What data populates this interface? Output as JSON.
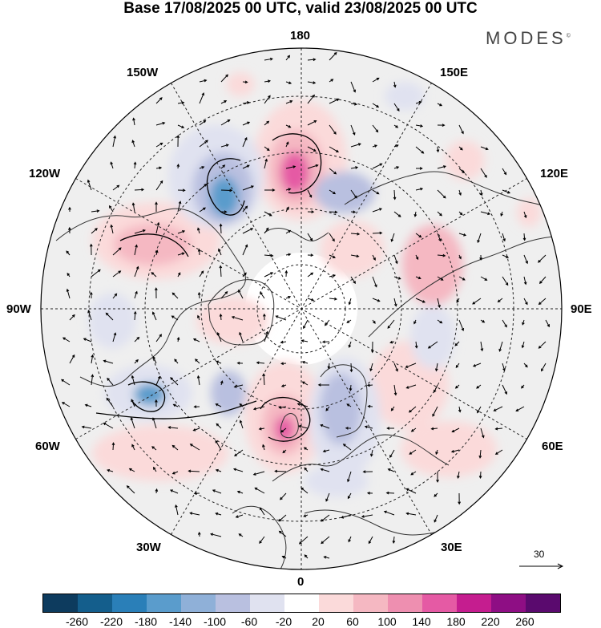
{
  "title": "Base 17/08/2025 00 UTC, valid 23/08/2025 00 UTC",
  "brand": {
    "text": "MODES",
    "mark": "©"
  },
  "longitude_labels": {
    "top": "180",
    "bottom": "0",
    "left": "90W",
    "right": "90E",
    "upper_left_1": "150W",
    "upper_left_2": "120W",
    "upper_right_1": "150E",
    "upper_right_2": "120E",
    "lower_left_1": "60W",
    "lower_left_2": "30W",
    "lower_right_1": "60E",
    "lower_right_2": "30E"
  },
  "reference_vector": {
    "label": "30"
  },
  "colorbar": {
    "colors": [
      "#0d3b5e",
      "#145e8c",
      "#2a7fb8",
      "#5a9ccc",
      "#8fb0d8",
      "#b9c0e0",
      "#e0e2f0",
      "#ffffff",
      "#fbdada",
      "#f5b8c2",
      "#ee8fb0",
      "#e55aa4",
      "#c51d8f",
      "#8e0e84",
      "#5a0a6e"
    ],
    "ticks": [
      "-260",
      "-220",
      "-180",
      "-140",
      "-100",
      "-60",
      "-20",
      "20",
      "60",
      "100",
      "140",
      "180",
      "220",
      "260"
    ]
  },
  "anomaly_features": [
    {
      "name": "aleutian-high",
      "sign": "positive"
    },
    {
      "name": "north-pacific-low",
      "sign": "negative"
    },
    {
      "name": "north-atlantic-high",
      "sign": "positive"
    },
    {
      "name": "labrador-low",
      "sign": "negative"
    },
    {
      "name": "scandinavia-low",
      "sign": "negative"
    },
    {
      "name": "canada-high",
      "sign": "positive"
    }
  ]
}
